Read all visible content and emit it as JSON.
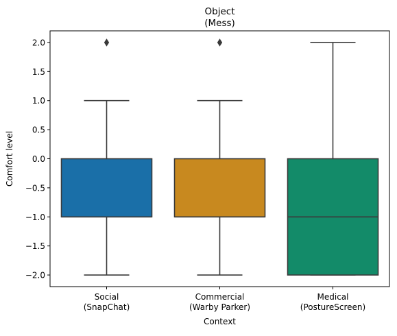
{
  "chart_data": {
    "type": "box",
    "title_lines": [
      "Object",
      "(Mess)"
    ],
    "xlabel": "Context",
    "ylabel": "Comfort level",
    "ylim": [
      -2.2,
      2.2
    ],
    "yticks": [
      {
        "value": 2.0,
        "label": "2.0"
      },
      {
        "value": 1.5,
        "label": "1.5"
      },
      {
        "value": 1.0,
        "label": "1.0"
      },
      {
        "value": 0.5,
        "label": "0.5"
      },
      {
        "value": 0.0,
        "label": "0.0"
      },
      {
        "value": -0.5,
        "label": "−0.5"
      },
      {
        "value": -1.0,
        "label": "−1.0"
      },
      {
        "value": -1.5,
        "label": "−1.5"
      },
      {
        "value": -2.0,
        "label": "−2.0"
      }
    ],
    "groups": [
      {
        "label_lines": [
          "Social",
          "(SnapChat)"
        ],
        "color": "#1a6fa8",
        "whisker_low": -2.0,
        "q1": -1.0,
        "median": -1.0,
        "q3": 0.0,
        "whisker_high": 1.0,
        "outliers": [
          2.0
        ]
      },
      {
        "label_lines": [
          "Commercial",
          "(Warby Parker)"
        ],
        "color": "#c8891f",
        "whisker_low": -2.0,
        "q1": -1.0,
        "median": -1.0,
        "q3": 0.0,
        "whisker_high": 1.0,
        "outliers": [
          2.0
        ]
      },
      {
        "label_lines": [
          "Medical",
          "(PostureScreen)"
        ],
        "color": "#138b69",
        "whisker_low": -2.0,
        "q1": -2.0,
        "median": -1.0,
        "q3": 0.0,
        "whisker_high": 2.0,
        "outliers": []
      }
    ],
    "grid": false,
    "line_color": "#3a3a3a"
  }
}
